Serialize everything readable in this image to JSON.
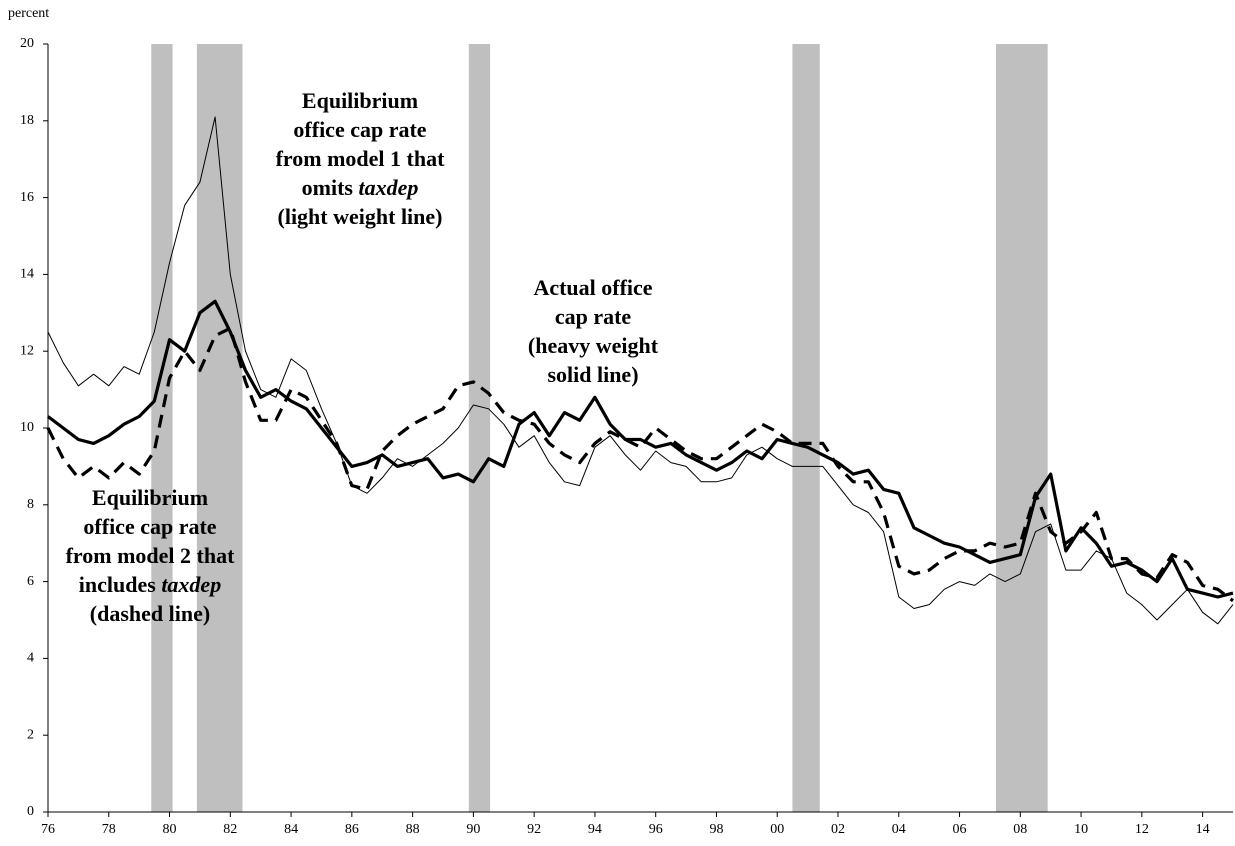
{
  "chart_data": {
    "type": "line",
    "y_axis_label": "percent",
    "x": [
      1976,
      1976.5,
      1977,
      1977.5,
      1978,
      1978.5,
      1979,
      1979.5,
      1980,
      1980.5,
      1981,
      1981.5,
      1982,
      1982.5,
      1983,
      1983.5,
      1984,
      1984.5,
      1985,
      1985.5,
      1986,
      1986.5,
      1987,
      1987.5,
      1988,
      1988.5,
      1989,
      1989.5,
      1990,
      1990.5,
      1991,
      1991.5,
      1992,
      1992.5,
      1993,
      1993.5,
      1994,
      1994.5,
      1995,
      1995.5,
      1996,
      1996.5,
      1997,
      1997.5,
      1998,
      1998.5,
      1999,
      1999.5,
      2000,
      2000.5,
      2001,
      2001.5,
      2002,
      2002.5,
      2003,
      2003.5,
      2004,
      2004.5,
      2005,
      2005.5,
      2006,
      2006.5,
      2007,
      2007.5,
      2008,
      2008.5,
      2009,
      2009.5,
      2010,
      2010.5,
      2011,
      2011.5,
      2012,
      2012.5,
      2013,
      2013.5,
      2014,
      2014.5,
      2015
    ],
    "series": [
      {
        "color": "#000000",
        "values": [
          12.5,
          11.7,
          11.1,
          11.4,
          11.1,
          11.6,
          11.4,
          12.5,
          14.3,
          15.8,
          16.4,
          18.1,
          14.0,
          12.0,
          11.0,
          10.8,
          11.8,
          11.5,
          10.5,
          9.6,
          8.5,
          8.3,
          8.7,
          9.2,
          9.0,
          9.3,
          9.6,
          10.0,
          10.6,
          10.5,
          10.1,
          9.5,
          9.8,
          9.1,
          8.6,
          8.5,
          9.5,
          9.8,
          9.3,
          8.9,
          9.4,
          9.1,
          9.0,
          8.6,
          8.6,
          8.7,
          9.3,
          9.5,
          9.2,
          9.0,
          9.0,
          9.0,
          8.5,
          8.0,
          7.8,
          7.3,
          5.6,
          5.3,
          5.4,
          5.8,
          6.0,
          5.9,
          6.2,
          6.0,
          6.2,
          7.3,
          7.5,
          6.3,
          6.3,
          6.8,
          6.6,
          5.7,
          5.4,
          5.0,
          5.4,
          5.8,
          5.2,
          4.9,
          5.4
        ]
      },
      {
        "color": "#000000",
        "values": [
          10.3,
          10.0,
          9.7,
          9.6,
          9.8,
          10.1,
          10.3,
          10.7,
          12.3,
          12.0,
          13.0,
          13.3,
          12.5,
          11.5,
          10.8,
          11.0,
          10.7,
          10.5,
          10.0,
          9.5,
          9.0,
          9.1,
          9.3,
          9.0,
          9.1,
          9.2,
          8.7,
          8.8,
          8.6,
          9.2,
          9.0,
          10.1,
          10.4,
          9.8,
          10.4,
          10.2,
          10.8,
          10.1,
          9.7,
          9.7,
          9.5,
          9.6,
          9.3,
          9.1,
          8.9,
          9.1,
          9.4,
          9.2,
          9.7,
          9.6,
          9.5,
          9.3,
          9.1,
          8.8,
          8.9,
          8.4,
          8.3,
          7.4,
          7.2,
          7.0,
          6.9,
          6.7,
          6.5,
          6.6,
          6.7,
          8.2,
          8.8,
          6.8,
          7.4,
          7.0,
          6.4,
          6.5,
          6.3,
          6.0,
          6.6,
          5.8,
          5.7,
          5.6,
          5.7
        ]
      },
      {
        "color": "#000000",
        "values": [
          10.0,
          9.2,
          8.7,
          9.0,
          8.7,
          9.1,
          8.8,
          9.4,
          11.3,
          12.0,
          11.5,
          12.4,
          12.6,
          11.2,
          10.2,
          10.2,
          11.0,
          10.8,
          10.2,
          9.6,
          8.5,
          8.4,
          9.4,
          9.8,
          10.1,
          10.3,
          10.5,
          11.1,
          11.2,
          10.9,
          10.4,
          10.2,
          10.1,
          9.6,
          9.3,
          9.1,
          9.6,
          9.9,
          9.7,
          9.5,
          10.0,
          9.7,
          9.4,
          9.2,
          9.2,
          9.5,
          9.8,
          10.1,
          9.9,
          9.6,
          9.6,
          9.6,
          9.0,
          8.6,
          8.6,
          7.8,
          6.4,
          6.2,
          6.3,
          6.6,
          6.8,
          6.8,
          7.0,
          6.9,
          7.0,
          8.3,
          7.3,
          7.0,
          7.3,
          7.8,
          6.6,
          6.6,
          6.2,
          6.1,
          6.7,
          6.5,
          5.9,
          5.8,
          5.5
        ]
      }
    ],
    "shading": [
      [
        1979.4,
        1980.1
      ],
      [
        1980.9,
        1982.4
      ],
      [
        1989.85,
        1990.55
      ],
      [
        2000.5,
        2001.4
      ],
      [
        2007.2,
        2008.9
      ]
    ],
    "shading_color": "#bfbfbf",
    "annotations": [
      {
        "lines": [
          "Equilibrium",
          "office cap rate",
          "from model 1 that",
          [
            "omits ",
            "taxdep"
          ],
          "(light weight line)"
        ]
      },
      {
        "lines": [
          "Actual office",
          "cap rate",
          "(heavy weight",
          "solid line)"
        ]
      },
      {
        "lines": [
          "Equilibrium",
          "office cap rate",
          "from model 2 that",
          [
            "includes ",
            "taxdep"
          ],
          "(dashed line)"
        ]
      }
    ],
    "xlim": [
      1976,
      2015
    ],
    "xticks": [
      {
        "value": 1976,
        "label": "76"
      },
      {
        "value": 1978,
        "label": "78"
      },
      {
        "value": 1980,
        "label": "80"
      },
      {
        "value": 1982,
        "label": "82"
      },
      {
        "value": 1984,
        "label": "84"
      },
      {
        "value": 1986,
        "label": "86"
      },
      {
        "value": 1988,
        "label": "88"
      },
      {
        "value": 1990,
        "label": "90"
      },
      {
        "value": 1992,
        "label": "92"
      },
      {
        "value": 1994,
        "label": "94"
      },
      {
        "value": 1996,
        "label": "96"
      },
      {
        "value": 1998,
        "label": "98"
      },
      {
        "value": 2000,
        "label": "00"
      },
      {
        "value": 2002,
        "label": "02"
      },
      {
        "value": 2004,
        "label": "04"
      },
      {
        "value": 2006,
        "label": "06"
      },
      {
        "value": 2008,
        "label": "08"
      },
      {
        "value": 2010,
        "label": "10"
      },
      {
        "value": 2012,
        "label": "12"
      },
      {
        "value": 2014,
        "label": "14"
      }
    ],
    "ylim": [
      0,
      20
    ],
    "yticks": [
      0,
      2,
      4,
      6,
      8,
      10,
      12,
      14,
      16,
      18,
      20
    ],
    "grid": false
  }
}
